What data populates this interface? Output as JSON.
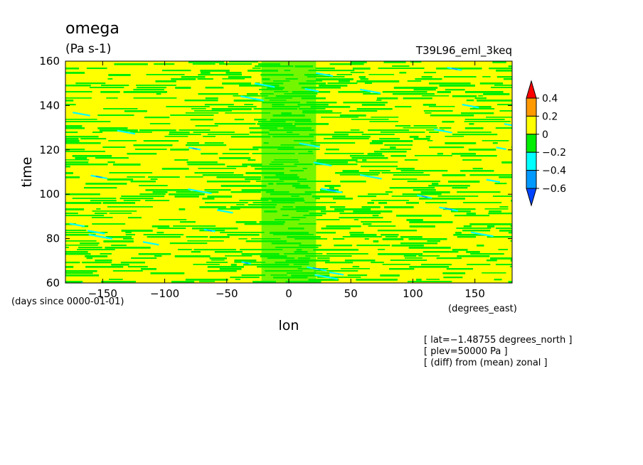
{
  "chart_data": {
    "type": "heatmap",
    "title": "omega",
    "subtitle": "(Pa s-1)",
    "run_label": "T39L96_eml_3keq",
    "xlabel": "lon",
    "ylabel": "time",
    "x_units": "(degrees_east)",
    "y_units": "(days since 0000-01-01)",
    "xlim": [
      -180,
      180
    ],
    "ylim": [
      60,
      160
    ],
    "x_ticks": [
      -150,
      -100,
      -50,
      0,
      50,
      100,
      150
    ],
    "y_ticks": [
      60,
      80,
      100,
      120,
      140,
      160
    ],
    "x_tick_labels": [
      "−150",
      "−100",
      "−50",
      "0",
      "50",
      "100",
      "150"
    ],
    "y_tick_labels": [
      "60",
      "80",
      "100",
      "120",
      "140",
      "160"
    ],
    "colorbar": {
      "labels": [
        "0.4",
        "0.2",
        "0",
        "−0.2",
        "−0.4",
        "−0.6"
      ],
      "levels": [
        0.4,
        0.2,
        0,
        -0.2,
        -0.4,
        -0.6
      ],
      "colors": [
        "#ff0000",
        "#ff9900",
        "#ffff00",
        "#00ee00",
        "#00ffff",
        "#0099ff",
        "#0044ff"
      ]
    },
    "annotations": [
      "[ lat=−1.48755 degrees_north ]",
      "[ plev=50000 Pa ]",
      "[ (diff) from (mean) zonal ]"
    ],
    "grid": false,
    "legend_position": "right"
  }
}
